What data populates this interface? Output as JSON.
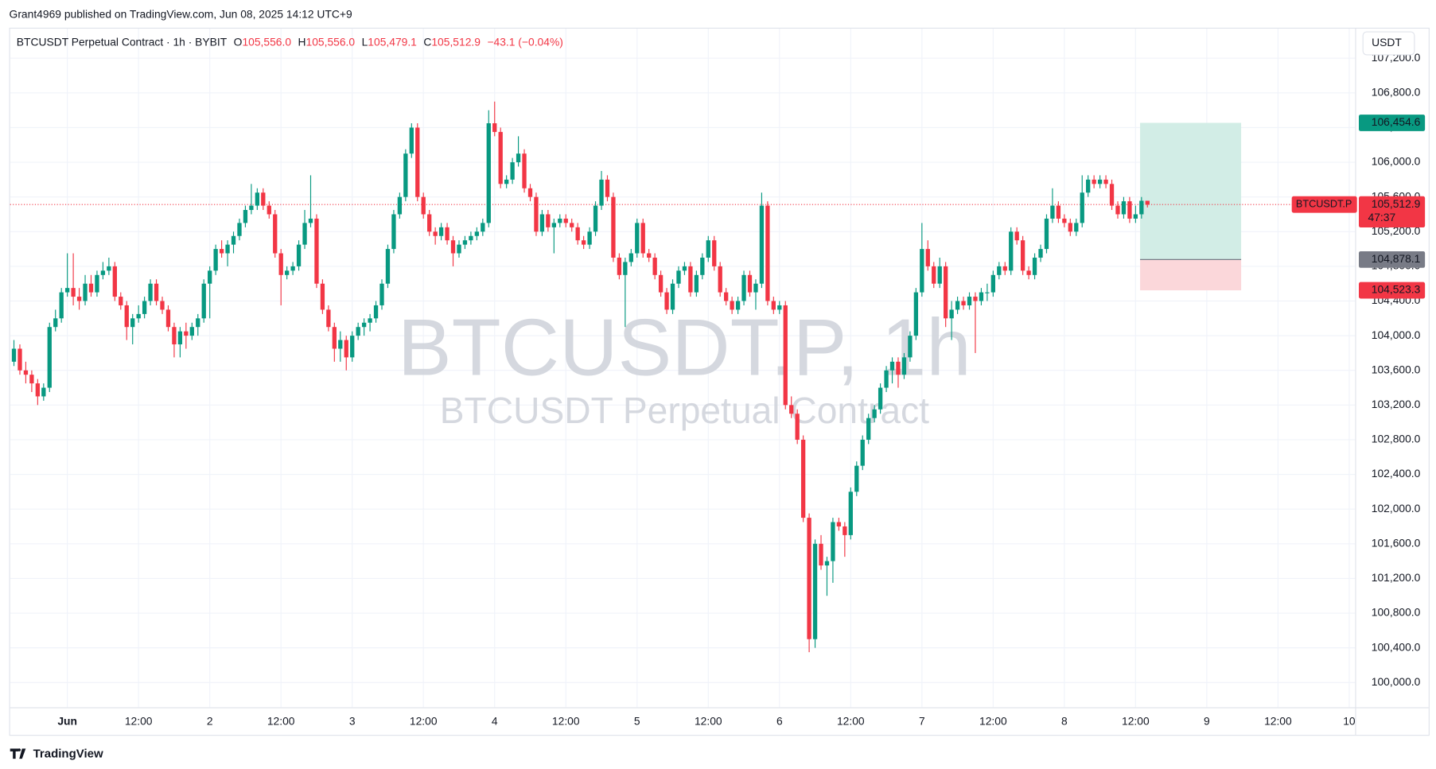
{
  "header": {
    "published": "Grant4969 published on TradingView.com, Jun 08, 2025 14:12 UTC+9"
  },
  "chart_data": {
    "type": "candlestick",
    "symbol": "BTCUSDT Perpetual Contract · 1h · BYBIT",
    "legend": {
      "o_label": "O",
      "o": "105,556.0",
      "h_label": "H",
      "h": "105,556.0",
      "l_label": "L",
      "l": "105,479.1",
      "c_label": "C",
      "c": "105,512.9",
      "change": "−43.1 (−0.04%)"
    },
    "watermark": {
      "title": "BTCUSDT.P, 1h",
      "subtitle": "BTCUSDT Perpetual Contract"
    },
    "currency_button": "USDT",
    "up_color": "#089981",
    "down_color": "#f23645",
    "grid": true,
    "xlim": [
      -0.8,
      226
    ],
    "xticks": [
      {
        "value": 9,
        "label": "Jun"
      },
      {
        "value": 21,
        "label": "12:00"
      },
      {
        "value": 33,
        "label": "2"
      },
      {
        "value": 45,
        "label": "12:00"
      },
      {
        "value": 57,
        "label": "3"
      },
      {
        "value": 69,
        "label": "12:00"
      },
      {
        "value": 81,
        "label": "4"
      },
      {
        "value": 93,
        "label": "12:00"
      },
      {
        "value": 105,
        "label": "5"
      },
      {
        "value": 117,
        "label": "12:00"
      },
      {
        "value": 129,
        "label": "6"
      },
      {
        "value": 141,
        "label": "12:00"
      },
      {
        "value": 153,
        "label": "7"
      },
      {
        "value": 165,
        "label": "12:00"
      },
      {
        "value": 177,
        "label": "8"
      },
      {
        "value": 189,
        "label": "12:00"
      },
      {
        "value": 201,
        "label": "9"
      },
      {
        "value": 213,
        "label": "12:00"
      },
      {
        "value": 225,
        "label": "10"
      }
    ],
    "ylim": [
      99714,
      107552
    ],
    "yticks": [
      {
        "value": 100000,
        "label": "100,000.0"
      },
      {
        "value": 100400,
        "label": "100,400.0"
      },
      {
        "value": 100800,
        "label": "100,800.0"
      },
      {
        "value": 101200,
        "label": "101,200.0"
      },
      {
        "value": 101600,
        "label": "101,600.0"
      },
      {
        "value": 102000,
        "label": "102,000.0"
      },
      {
        "value": 102400,
        "label": "102,400.0"
      },
      {
        "value": 102800,
        "label": "102,800.0"
      },
      {
        "value": 103200,
        "label": "103,200.0"
      },
      {
        "value": 103600,
        "label": "103,600.0"
      },
      {
        "value": 104000,
        "label": "104,000.0"
      },
      {
        "value": 104400,
        "label": "104,400.0"
      },
      {
        "value": 104800,
        "label": "104,800.0"
      },
      {
        "value": 105200,
        "label": "105,200.0"
      },
      {
        "value": 105600,
        "label": "105,600.0"
      },
      {
        "value": 106000,
        "label": "106,000.0"
      },
      {
        "value": 106400,
        "label": "106,400.0"
      },
      {
        "value": 106800,
        "label": "106,800.0"
      },
      {
        "value": 107200,
        "label": "107,200.0"
      }
    ],
    "candles": [
      [
        103700,
        103950,
        103650,
        103850
      ],
      [
        103850,
        103900,
        103550,
        103600
      ],
      [
        103600,
        103700,
        103450,
        103550
      ],
      [
        103550,
        103600,
        103350,
        103450
      ],
      [
        103450,
        103500,
        103200,
        103300
      ],
      [
        103300,
        103450,
        103250,
        103400
      ],
      [
        103400,
        104150,
        103350,
        104100
      ],
      [
        104100,
        104300,
        104050,
        104200
      ],
      [
        104200,
        104550,
        104150,
        104500
      ],
      [
        104500,
        104950,
        104450,
        104550
      ],
      [
        104550,
        104950,
        104350,
        104450
      ],
      [
        104450,
        104550,
        104300,
        104400
      ],
      [
        104400,
        104700,
        104350,
        104600
      ],
      [
        104600,
        104700,
        104450,
        104500
      ],
      [
        104500,
        104750,
        104450,
        104700
      ],
      [
        104700,
        104850,
        104650,
        104750
      ],
      [
        104750,
        104900,
        104700,
        104800
      ],
      [
        104800,
        104850,
        104400,
        104450
      ],
      [
        104450,
        104500,
        104300,
        104350
      ],
      [
        104350,
        104400,
        103950,
        104100
      ],
      [
        104100,
        104250,
        103900,
        104200
      ],
      [
        104200,
        104350,
        104150,
        104250
      ],
      [
        104250,
        104450,
        104200,
        104400
      ],
      [
        104400,
        104650,
        104350,
        104600
      ],
      [
        104600,
        104650,
        104350,
        104400
      ],
      [
        104400,
        104450,
        104250,
        104300
      ],
      [
        104300,
        104350,
        104050,
        104100
      ],
      [
        104100,
        104150,
        103750,
        103900
      ],
      [
        103900,
        104100,
        103750,
        104050
      ],
      [
        104050,
        104150,
        103850,
        104000
      ],
      [
        104000,
        104150,
        103950,
        104100
      ],
      [
        104100,
        104250,
        104000,
        104200
      ],
      [
        104200,
        104650,
        104150,
        104600
      ],
      [
        104600,
        104800,
        104200,
        104750
      ],
      [
        104750,
        105050,
        104700,
        105000
      ],
      [
        105000,
        105100,
        104900,
        104950
      ],
      [
        104950,
        105100,
        104800,
        105050
      ],
      [
        105050,
        105200,
        104950,
        105150
      ],
      [
        105150,
        105350,
        105100,
        105300
      ],
      [
        105300,
        105500,
        105250,
        105450
      ],
      [
        105450,
        105750,
        105400,
        105500
      ],
      [
        105500,
        105700,
        105450,
        105650
      ],
      [
        105650,
        105700,
        105450,
        105500
      ],
      [
        105500,
        105550,
        105350,
        105400
      ],
      [
        105400,
        105450,
        104900,
        104950
      ],
      [
        104950,
        105000,
        104350,
        104700
      ],
      [
        104700,
        104800,
        104650,
        104750
      ],
      [
        104750,
        104850,
        104700,
        104800
      ],
      [
        104800,
        105100,
        104750,
        105050
      ],
      [
        105050,
        105450,
        105000,
        105300
      ],
      [
        105300,
        105850,
        105250,
        105350
      ],
      [
        105350,
        105400,
        104550,
        104600
      ],
      [
        104600,
        104650,
        104250,
        104300
      ],
      [
        104300,
        104350,
        104050,
        104100
      ],
      [
        104100,
        104150,
        103700,
        103850
      ],
      [
        103850,
        104050,
        103700,
        103950
      ],
      [
        103950,
        104000,
        103600,
        103750
      ],
      [
        103750,
        104050,
        103700,
        104000
      ],
      [
        104000,
        104150,
        103950,
        104100
      ],
      [
        104100,
        104200,
        104000,
        104150
      ],
      [
        104150,
        104250,
        104050,
        104200
      ],
      [
        104200,
        104400,
        104150,
        104350
      ],
      [
        104350,
        104650,
        104300,
        104600
      ],
      [
        104600,
        105050,
        104550,
        105000
      ],
      [
        105000,
        105450,
        104950,
        105400
      ],
      [
        105400,
        105650,
        105350,
        105600
      ],
      [
        105600,
        106150,
        105550,
        106100
      ],
      [
        106100,
        106450,
        106050,
        106400
      ],
      [
        106400,
        106450,
        105550,
        105600
      ],
      [
        105600,
        105650,
        105350,
        105400
      ],
      [
        105400,
        105450,
        105150,
        105200
      ],
      [
        105200,
        105250,
        105050,
        105150
      ],
      [
        105150,
        105300,
        105100,
        105250
      ],
      [
        105250,
        105300,
        105050,
        105100
      ],
      [
        105100,
        105150,
        104800,
        104950
      ],
      [
        104950,
        105100,
        104900,
        105050
      ],
      [
        105050,
        105150,
        105000,
        105100
      ],
      [
        105100,
        105200,
        105050,
        105150
      ],
      [
        105150,
        105250,
        105100,
        105200
      ],
      [
        105200,
        105350,
        105150,
        105300
      ],
      [
        105300,
        106600,
        105250,
        106450
      ],
      [
        106450,
        106700,
        106300,
        106350
      ],
      [
        106350,
        106400,
        105700,
        105750
      ],
      [
        105750,
        105850,
        105700,
        105800
      ],
      [
        105800,
        106050,
        105750,
        106000
      ],
      [
        106000,
        106300,
        105950,
        106100
      ],
      [
        106100,
        106150,
        105650,
        105700
      ],
      [
        105700,
        105750,
        105550,
        105600
      ],
      [
        105600,
        105650,
        105150,
        105200
      ],
      [
        105200,
        105450,
        105150,
        105400
      ],
      [
        105400,
        105450,
        105200,
        105250
      ],
      [
        105250,
        105350,
        104950,
        105300
      ],
      [
        105300,
        105400,
        105250,
        105350
      ],
      [
        105350,
        105400,
        105250,
        105300
      ],
      [
        105300,
        105350,
        105200,
        105250
      ],
      [
        105250,
        105300,
        105050,
        105100
      ],
      [
        105100,
        105150,
        105000,
        105050
      ],
      [
        105050,
        105250,
        105000,
        105200
      ],
      [
        105200,
        105550,
        105150,
        105500
      ],
      [
        105500,
        105900,
        105450,
        105800
      ],
      [
        105800,
        105850,
        105550,
        105600
      ],
      [
        105600,
        105650,
        104850,
        104900
      ],
      [
        104900,
        104950,
        104650,
        104700
      ],
      [
        104700,
        104900,
        104100,
        104850
      ],
      [
        104850,
        105000,
        104800,
        104950
      ],
      [
        104950,
        105350,
        104900,
        105300
      ],
      [
        105300,
        105350,
        104900,
        104950
      ],
      [
        104950,
        105000,
        104850,
        104900
      ],
      [
        104900,
        104950,
        104650,
        104700
      ],
      [
        104700,
        104750,
        104450,
        104500
      ],
      [
        104500,
        104550,
        104250,
        104300
      ],
      [
        104300,
        104650,
        104250,
        104600
      ],
      [
        104600,
        104800,
        104550,
        104750
      ],
      [
        104750,
        104850,
        104700,
        104800
      ],
      [
        104800,
        104850,
        104450,
        104500
      ],
      [
        104500,
        104750,
        104450,
        104700
      ],
      [
        104700,
        104950,
        104650,
        104900
      ],
      [
        104900,
        105150,
        104850,
        105100
      ],
      [
        105100,
        105150,
        104750,
        104800
      ],
      [
        104800,
        104850,
        104450,
        104500
      ],
      [
        104500,
        104550,
        104350,
        104400
      ],
      [
        104400,
        104450,
        104250,
        104300
      ],
      [
        104300,
        104450,
        104250,
        104400
      ],
      [
        104400,
        104750,
        104350,
        104700
      ],
      [
        104700,
        104750,
        104450,
        104500
      ],
      [
        104500,
        104650,
        104300,
        104600
      ],
      [
        104600,
        105650,
        104550,
        105500
      ],
      [
        105500,
        105550,
        104350,
        104400
      ],
      [
        104400,
        104450,
        104250,
        104300
      ],
      [
        104300,
        104400,
        104250,
        104350
      ],
      [
        104350,
        104400,
        103150,
        103200
      ],
      [
        103200,
        103300,
        103050,
        103100
      ],
      [
        103100,
        103150,
        102750,
        102800
      ],
      [
        102800,
        102850,
        101850,
        101900
      ],
      [
        101900,
        101950,
        100350,
        100500
      ],
      [
        100500,
        101650,
        100400,
        101600
      ],
      [
        101600,
        101700,
        101300,
        101350
      ],
      [
        101350,
        101450,
        101000,
        101400
      ],
      [
        101400,
        101900,
        101150,
        101850
      ],
      [
        101850,
        101900,
        101750,
        101800
      ],
      [
        101800,
        101850,
        101450,
        101700
      ],
      [
        101700,
        102250,
        101650,
        102200
      ],
      [
        102200,
        102550,
        102150,
        102500
      ],
      [
        102500,
        102850,
        102450,
        102800
      ],
      [
        102800,
        103100,
        102750,
        103050
      ],
      [
        103050,
        103200,
        103000,
        103150
      ],
      [
        103150,
        103450,
        103100,
        103400
      ],
      [
        103400,
        103650,
        103350,
        103600
      ],
      [
        103600,
        103750,
        103450,
        103700
      ],
      [
        103700,
        103750,
        103400,
        103550
      ],
      [
        103550,
        103800,
        103500,
        103750
      ],
      [
        103750,
        104050,
        103700,
        104000
      ],
      [
        104000,
        104550,
        103950,
        104500
      ],
      [
        104500,
        105300,
        104450,
        105000
      ],
      [
        105000,
        105100,
        104750,
        104800
      ],
      [
        104800,
        104850,
        104550,
        104600
      ],
      [
        104600,
        104900,
        104550,
        104800
      ],
      [
        104800,
        104850,
        104100,
        104200
      ],
      [
        104200,
        104400,
        103950,
        104300
      ],
      [
        104300,
        104450,
        104250,
        104400
      ],
      [
        104400,
        104450,
        104300,
        104350
      ],
      [
        104350,
        104500,
        104300,
        104450
      ],
      [
        104450,
        104500,
        103800,
        104400
      ],
      [
        104400,
        104550,
        104350,
        104500
      ],
      [
        104500,
        104600,
        104400,
        104500
      ],
      [
        104500,
        104750,
        104450,
        104700
      ],
      [
        104700,
        104850,
        104650,
        104800
      ],
      [
        104800,
        104850,
        104700,
        104750
      ],
      [
        104750,
        105250,
        104700,
        105200
      ],
      [
        105200,
        105250,
        105050,
        105100
      ],
      [
        105100,
        105150,
        104700,
        104750
      ],
      [
        104750,
        104800,
        104650,
        104700
      ],
      [
        104700,
        104950,
        104650,
        104900
      ],
      [
        104900,
        105050,
        104850,
        105000
      ],
      [
        105000,
        105400,
        104950,
        105350
      ],
      [
        105350,
        105700,
        105300,
        105500
      ],
      [
        105500,
        105550,
        105300,
        105350
      ],
      [
        105350,
        105400,
        105250,
        105300
      ],
      [
        105300,
        105350,
        105150,
        105200
      ],
      [
        105200,
        105350,
        105150,
        105300
      ],
      [
        105300,
        105850,
        105250,
        105650
      ],
      [
        105650,
        105850,
        105600,
        105800
      ],
      [
        105800,
        105850,
        105700,
        105750
      ],
      [
        105750,
        105850,
        105700,
        105800
      ],
      [
        105800,
        105850,
        105700,
        105750
      ],
      [
        105750,
        105800,
        105450,
        105500
      ],
      [
        105500,
        105550,
        105350,
        105400
      ],
      [
        105400,
        105600,
        105350,
        105550
      ],
      [
        105550,
        105600,
        105300,
        105350
      ],
      [
        105350,
        105500,
        105300,
        105400
      ],
      [
        105400,
        105600,
        105350,
        105556
      ],
      [
        105556,
        105556,
        105479.1,
        105512.9
      ]
    ],
    "position": {
      "target": {
        "value": 106454.6,
        "label": "106,454.6"
      },
      "entry": {
        "value": 104878.1,
        "label": "104,878.1"
      },
      "stop": {
        "value": 104523.3,
        "label": "104,523.3"
      },
      "profit_color": "#d2ede6",
      "loss_color": "#fbd7da",
      "entry_color": "#787b86"
    },
    "last_price": {
      "symbol": "BTCUSDT.P",
      "value": 105512.9,
      "label": "105,512.9",
      "countdown": "47:37",
      "color": "#f23645"
    }
  },
  "footer": {
    "brand": "TradingView"
  }
}
